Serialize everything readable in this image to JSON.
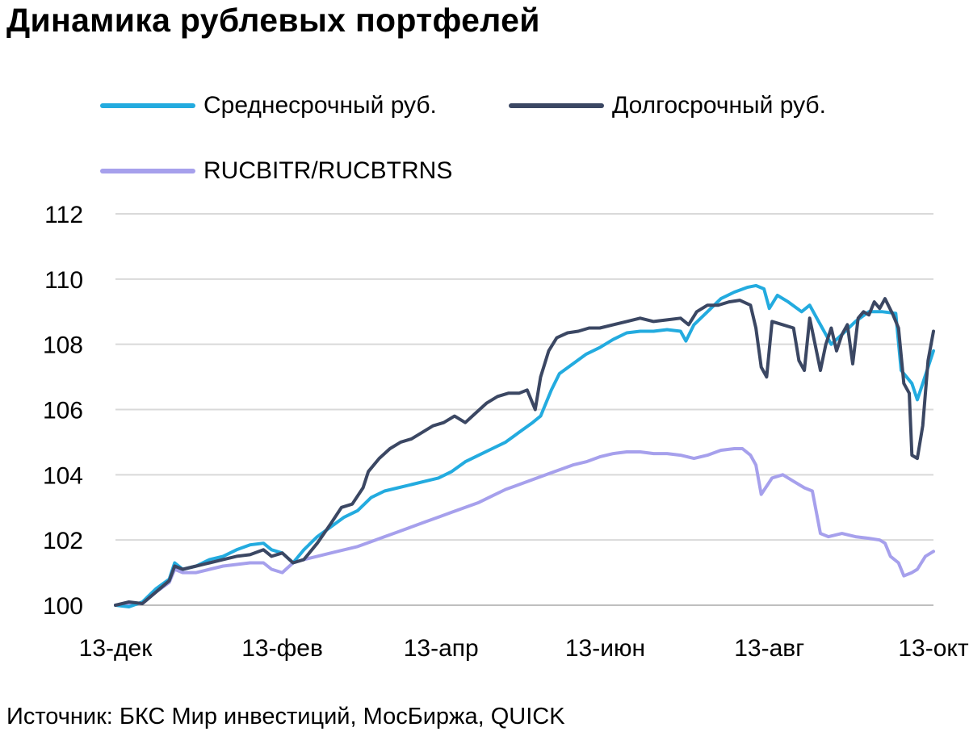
{
  "title": "Динамика рублевых портфелей",
  "source": "Источник: БКС Мир инвестиций, МосБиржа, QUICK",
  "chart_data": {
    "type": "line",
    "title": "Динамика рублевых портфелей",
    "xlabel": "",
    "ylabel": "",
    "ylim": [
      100,
      112
    ],
    "yticks": [
      100,
      102,
      104,
      106,
      108,
      110,
      112
    ],
    "xlim": [
      0,
      304
    ],
    "xticks": [
      {
        "label": "13-дек",
        "x": 0
      },
      {
        "label": "13-фев",
        "x": 62
      },
      {
        "label": "13-апр",
        "x": 121
      },
      {
        "label": "13-июн",
        "x": 182
      },
      {
        "label": "13-авг",
        "x": 243
      },
      {
        "label": "13-окт",
        "x": 304
      }
    ],
    "grid": "horizontal",
    "legend_position": "top",
    "series": [
      {
        "name": "Среднесрочный руб.",
        "color": "#23ABDF",
        "points": [
          [
            0,
            100
          ],
          [
            5,
            99.95
          ],
          [
            10,
            100.1
          ],
          [
            15,
            100.5
          ],
          [
            20,
            100.8
          ],
          [
            22,
            101.3
          ],
          [
            25,
            101.1
          ],
          [
            30,
            101.2
          ],
          [
            35,
            101.4
          ],
          [
            40,
            101.5
          ],
          [
            45,
            101.7
          ],
          [
            50,
            101.85
          ],
          [
            55,
            101.9
          ],
          [
            58,
            101.7
          ],
          [
            62,
            101.6
          ],
          [
            66,
            101.3
          ],
          [
            70,
            101.7
          ],
          [
            75,
            102.1
          ],
          [
            80,
            102.4
          ],
          [
            85,
            102.7
          ],
          [
            90,
            102.9
          ],
          [
            95,
            103.3
          ],
          [
            100,
            103.5
          ],
          [
            105,
            103.6
          ],
          [
            110,
            103.7
          ],
          [
            115,
            103.8
          ],
          [
            120,
            103.9
          ],
          [
            125,
            104.1
          ],
          [
            130,
            104.4
          ],
          [
            135,
            104.6
          ],
          [
            140,
            104.8
          ],
          [
            145,
            105.0
          ],
          [
            150,
            105.3
          ],
          [
            155,
            105.6
          ],
          [
            158,
            105.8
          ],
          [
            162,
            106.6
          ],
          [
            165,
            107.1
          ],
          [
            170,
            107.4
          ],
          [
            175,
            107.7
          ],
          [
            180,
            107.9
          ],
          [
            185,
            108.15
          ],
          [
            190,
            108.35
          ],
          [
            195,
            108.4
          ],
          [
            200,
            108.4
          ],
          [
            205,
            108.45
          ],
          [
            210,
            108.4
          ],
          [
            212,
            108.1
          ],
          [
            215,
            108.6
          ],
          [
            220,
            109.0
          ],
          [
            225,
            109.4
          ],
          [
            230,
            109.6
          ],
          [
            235,
            109.75
          ],
          [
            238,
            109.8
          ],
          [
            241,
            109.7
          ],
          [
            243,
            109.1
          ],
          [
            246,
            109.5
          ],
          [
            250,
            109.3
          ],
          [
            255,
            109.0
          ],
          [
            258,
            109.2
          ],
          [
            262,
            108.6
          ],
          [
            266,
            108.0
          ],
          [
            270,
            108.3
          ],
          [
            275,
            108.7
          ],
          [
            280,
            109.0
          ],
          [
            285,
            109.0
          ],
          [
            290,
            108.95
          ],
          [
            292,
            107.2
          ],
          [
            296,
            106.8
          ],
          [
            298,
            106.3
          ],
          [
            300,
            106.8
          ],
          [
            302,
            107.3
          ],
          [
            304,
            107.8
          ]
        ]
      },
      {
        "name": "Долгосрочный руб.",
        "color": "#3B4763",
        "points": [
          [
            0,
            100
          ],
          [
            5,
            100.1
          ],
          [
            10,
            100.05
          ],
          [
            15,
            100.4
          ],
          [
            20,
            100.75
          ],
          [
            22,
            101.2
          ],
          [
            25,
            101.1
          ],
          [
            30,
            101.2
          ],
          [
            35,
            101.3
          ],
          [
            40,
            101.4
          ],
          [
            45,
            101.5
          ],
          [
            50,
            101.55
          ],
          [
            55,
            101.7
          ],
          [
            58,
            101.5
          ],
          [
            62,
            101.6
          ],
          [
            66,
            101.3
          ],
          [
            70,
            101.4
          ],
          [
            75,
            101.9
          ],
          [
            80,
            102.5
          ],
          [
            84,
            103.0
          ],
          [
            88,
            103.1
          ],
          [
            92,
            103.6
          ],
          [
            94,
            104.1
          ],
          [
            98,
            104.5
          ],
          [
            102,
            104.8
          ],
          [
            106,
            105.0
          ],
          [
            110,
            105.1
          ],
          [
            114,
            105.3
          ],
          [
            118,
            105.5
          ],
          [
            122,
            105.6
          ],
          [
            126,
            105.8
          ],
          [
            130,
            105.6
          ],
          [
            134,
            105.9
          ],
          [
            138,
            106.2
          ],
          [
            142,
            106.4
          ],
          [
            146,
            106.5
          ],
          [
            150,
            106.5
          ],
          [
            153,
            106.6
          ],
          [
            156,
            106.0
          ],
          [
            158,
            107.0
          ],
          [
            161,
            107.8
          ],
          [
            164,
            108.2
          ],
          [
            168,
            108.35
          ],
          [
            172,
            108.4
          ],
          [
            176,
            108.5
          ],
          [
            180,
            108.5
          ],
          [
            185,
            108.6
          ],
          [
            190,
            108.7
          ],
          [
            195,
            108.8
          ],
          [
            200,
            108.7
          ],
          [
            205,
            108.75
          ],
          [
            210,
            108.8
          ],
          [
            213,
            108.6
          ],
          [
            216,
            109.0
          ],
          [
            220,
            109.2
          ],
          [
            224,
            109.2
          ],
          [
            228,
            109.3
          ],
          [
            232,
            109.35
          ],
          [
            236,
            109.2
          ],
          [
            238,
            108.5
          ],
          [
            240,
            107.3
          ],
          [
            242,
            107.0
          ],
          [
            244,
            108.7
          ],
          [
            248,
            108.6
          ],
          [
            252,
            108.5
          ],
          [
            254,
            107.5
          ],
          [
            256,
            107.2
          ],
          [
            258,
            108.8
          ],
          [
            260,
            108.0
          ],
          [
            262,
            107.2
          ],
          [
            264,
            108.0
          ],
          [
            266,
            108.5
          ],
          [
            268,
            107.8
          ],
          [
            270,
            108.3
          ],
          [
            272,
            108.6
          ],
          [
            274,
            107.4
          ],
          [
            276,
            108.8
          ],
          [
            278,
            109.0
          ],
          [
            280,
            108.9
          ],
          [
            282,
            109.3
          ],
          [
            284,
            109.1
          ],
          [
            286,
            109.4
          ],
          [
            289,
            108.9
          ],
          [
            291,
            108.5
          ],
          [
            293,
            106.8
          ],
          [
            295,
            106.5
          ],
          [
            296,
            104.6
          ],
          [
            298,
            104.5
          ],
          [
            300,
            105.5
          ],
          [
            302,
            107.5
          ],
          [
            304,
            108.4
          ]
        ]
      },
      {
        "name": "RUCBITR/RUCBTRNS",
        "color": "#A6A0EC",
        "points": [
          [
            0,
            100
          ],
          [
            5,
            100.05
          ],
          [
            10,
            100.05
          ],
          [
            15,
            100.4
          ],
          [
            20,
            100.7
          ],
          [
            22,
            101.1
          ],
          [
            25,
            101.0
          ],
          [
            30,
            101.0
          ],
          [
            35,
            101.1
          ],
          [
            40,
            101.2
          ],
          [
            45,
            101.25
          ],
          [
            50,
            101.3
          ],
          [
            55,
            101.3
          ],
          [
            58,
            101.1
          ],
          [
            62,
            101.0
          ],
          [
            66,
            101.3
          ],
          [
            70,
            101.4
          ],
          [
            75,
            101.5
          ],
          [
            80,
            101.6
          ],
          [
            85,
            101.7
          ],
          [
            90,
            101.8
          ],
          [
            95,
            101.95
          ],
          [
            100,
            102.1
          ],
          [
            105,
            102.25
          ],
          [
            110,
            102.4
          ],
          [
            115,
            102.55
          ],
          [
            120,
            102.7
          ],
          [
            125,
            102.85
          ],
          [
            130,
            103.0
          ],
          [
            135,
            103.15
          ],
          [
            140,
            103.35
          ],
          [
            145,
            103.55
          ],
          [
            150,
            103.7
          ],
          [
            155,
            103.85
          ],
          [
            160,
            104.0
          ],
          [
            165,
            104.15
          ],
          [
            170,
            104.3
          ],
          [
            175,
            104.4
          ],
          [
            180,
            104.55
          ],
          [
            185,
            104.65
          ],
          [
            190,
            104.7
          ],
          [
            195,
            104.7
          ],
          [
            200,
            104.65
          ],
          [
            205,
            104.65
          ],
          [
            210,
            104.6
          ],
          [
            215,
            104.5
          ],
          [
            220,
            104.6
          ],
          [
            225,
            104.75
          ],
          [
            230,
            104.8
          ],
          [
            233,
            104.8
          ],
          [
            236,
            104.6
          ],
          [
            238,
            104.3
          ],
          [
            240,
            103.4
          ],
          [
            244,
            103.9
          ],
          [
            248,
            104.0
          ],
          [
            252,
            103.8
          ],
          [
            256,
            103.6
          ],
          [
            259,
            103.5
          ],
          [
            262,
            102.2
          ],
          [
            265,
            102.1
          ],
          [
            270,
            102.2
          ],
          [
            275,
            102.1
          ],
          [
            280,
            102.05
          ],
          [
            284,
            102.0
          ],
          [
            286,
            101.9
          ],
          [
            288,
            101.5
          ],
          [
            291,
            101.3
          ],
          [
            293,
            100.9
          ],
          [
            296,
            101.0
          ],
          [
            298,
            101.1
          ],
          [
            301,
            101.5
          ],
          [
            304,
            101.65
          ]
        ]
      }
    ]
  }
}
